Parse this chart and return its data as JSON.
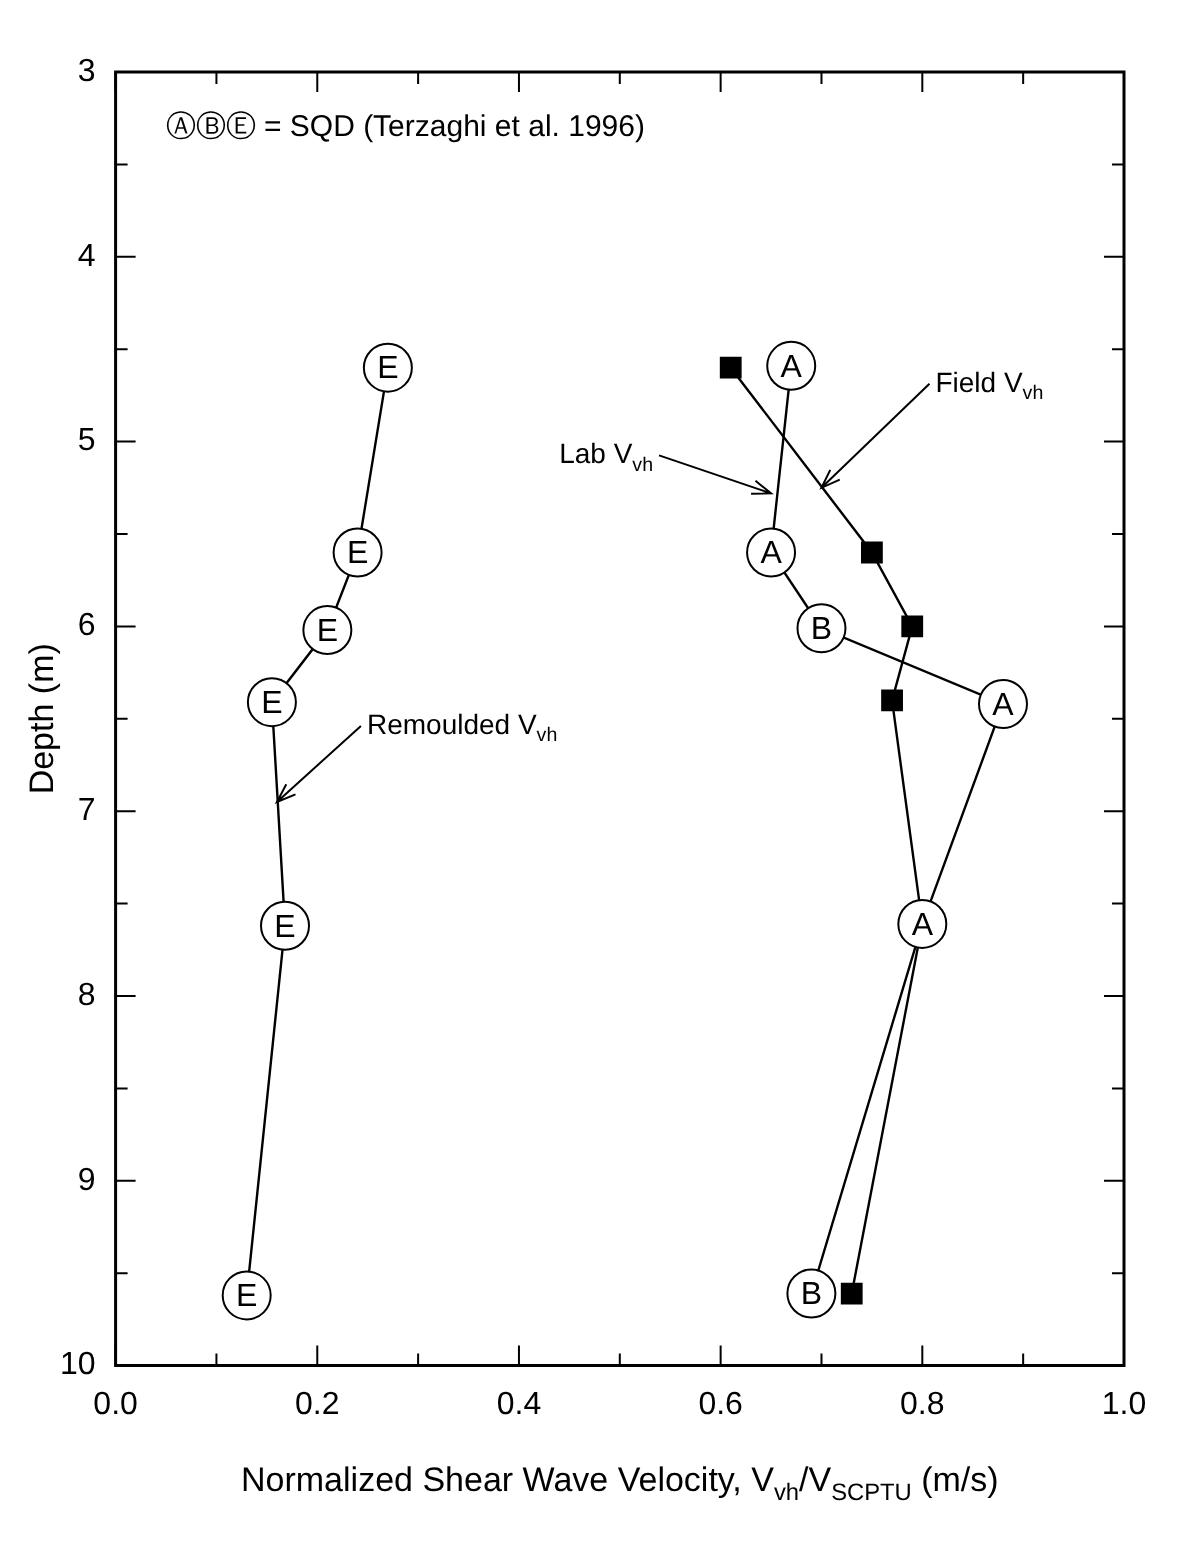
{
  "chart_data": {
    "type": "line",
    "xlabel": "Normalized Shear Wave Velocity, V$_{vh}$/V$_{SCPTU}$ (m/s)",
    "ylabel": "Depth (m)",
    "xlim": [
      0,
      1
    ],
    "ylim": [
      10,
      3
    ],
    "xticks": [
      {
        "value": 0,
        "label": "0.0"
      },
      {
        "value": 0.1,
        "label": null
      },
      {
        "value": 0.2,
        "label": "0.2"
      },
      {
        "value": 0.3,
        "label": null
      },
      {
        "value": 0.4,
        "label": "0.4"
      },
      {
        "value": 0.5,
        "label": null
      },
      {
        "value": 0.6,
        "label": "0.6"
      },
      {
        "value": 0.7,
        "label": null
      },
      {
        "value": 0.8,
        "label": "0.8"
      },
      {
        "value": 0.9,
        "label": null
      },
      {
        "value": 1,
        "label": "1.0"
      }
    ],
    "yticks": [
      3,
      {
        "value": 3.5,
        "label": null
      },
      4,
      {
        "value": 4.5,
        "label": null
      },
      5,
      {
        "value": 5.5,
        "label": null
      },
      6,
      {
        "value": 6.5,
        "label": null
      },
      7,
      {
        "value": 7.5,
        "label": null
      },
      8,
      {
        "value": 8.5,
        "label": null
      },
      9,
      {
        "value": 9.5,
        "label": null
      },
      10
    ],
    "grid": false,
    "legend": false,
    "series": [
      {
        "color": "#000000",
        "marker": "circle",
        "x": [
          0.67,
          0.65,
          0.7,
          0.88,
          0.8,
          0.69
        ],
        "values": [
          4.59,
          5.6,
          6.01,
          6.42,
          7.61,
          9.61
        ],
        "value_labels": [
          "A",
          "A",
          "B",
          "A",
          "A",
          "B"
        ]
      },
      {
        "color": "#000000",
        "marker": "square",
        "x": [
          0.61,
          0.75,
          0.79,
          0.77,
          0.8,
          0.73
        ],
        "values": [
          4.6,
          5.6,
          6.0,
          6.4,
          7.61,
          9.61
        ]
      },
      {
        "color": "#000000",
        "marker": "circle",
        "x": [
          0.27,
          0.24,
          0.21,
          0.155,
          0.168,
          0.13
        ],
        "values": [
          4.6,
          5.6,
          6.02,
          6.41,
          7.62,
          9.62
        ],
        "value_labels": [
          "E",
          "E",
          "E",
          "E",
          "E",
          "E"
        ]
      }
    ],
    "annotations": [
      "ⒶⒷⒺ = SQD (Terzaghi et al. 1996)",
      {
        "text": "Lab V$_{vh}$",
        "x": 0.65,
        "y": 5.28
      },
      {
        "text": "Field V$_{vh}$",
        "x": 0.7,
        "y": 5.25
      },
      {
        "text": "Remoulded V$_{vh}$",
        "x": 0.16,
        "y": 6.95
      }
    ]
  }
}
